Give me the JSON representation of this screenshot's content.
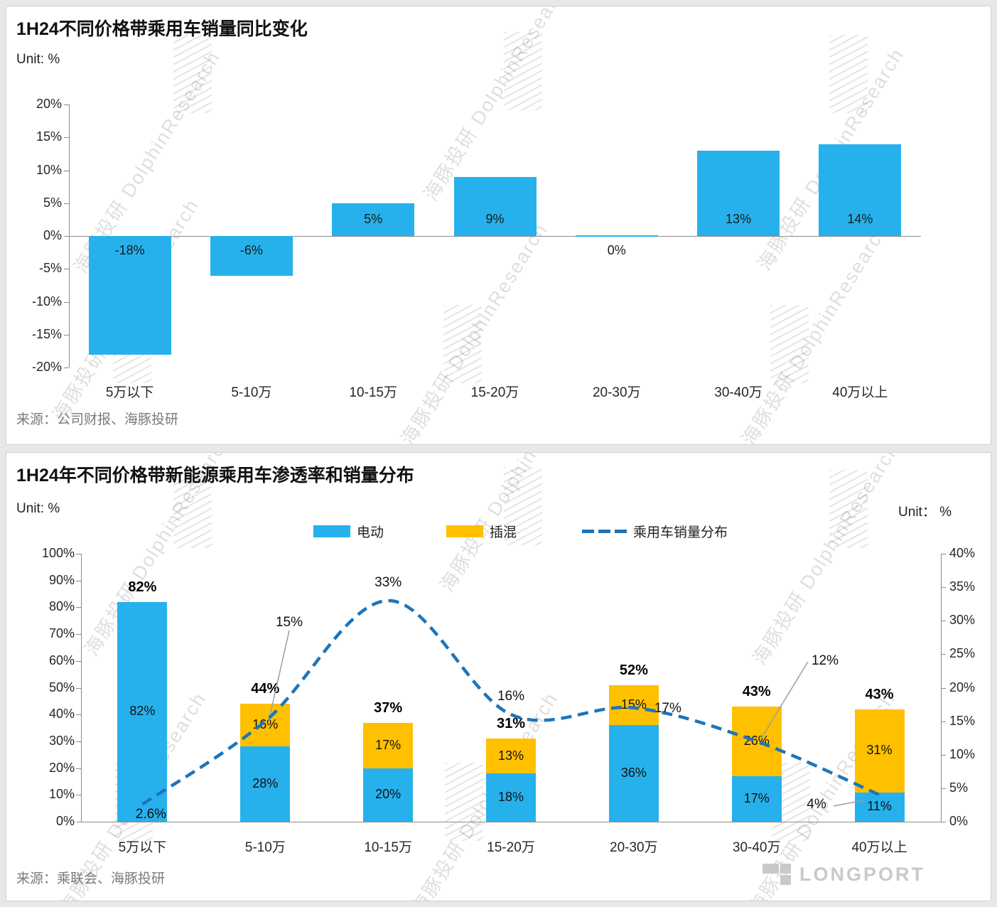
{
  "watermark": "海豚投研 DolphinResearch",
  "colors": {
    "bar_blue": "#27B1EC",
    "bar_yellow": "#FFC000",
    "line_blue": "#1C75BC"
  },
  "panels": [
    {
      "title": "1H24不同价格带乘用车销量同比变化",
      "unit_left": "Unit: %",
      "source": "来源：公司财报、海豚投研"
    },
    {
      "title": "1H24年不同价格带新能源乘用车渗透率和销量分布",
      "unit_left": "Unit: %",
      "unit_right": "Unit： %",
      "source": "来源：乘联会、海豚投研",
      "legend": [
        {
          "label": "电动",
          "color": "#27B1EC"
        },
        {
          "label": "插混",
          "color": "#FFC000"
        },
        {
          "label": "乘用车销量分布",
          "color": "#1C75BC"
        }
      ],
      "logo_text": "LONGPORT"
    }
  ],
  "chart_data": [
    {
      "type": "bar",
      "title": "1H24不同价格带乘用车销量同比变化",
      "unit": "%",
      "categories": [
        "5万以下",
        "5-10万",
        "10-15万",
        "15-20万",
        "20-30万",
        "30-40万",
        "40万以上"
      ],
      "values": [
        -18,
        -6,
        5,
        9,
        0,
        13,
        14
      ],
      "labels": [
        "-18%",
        "-6%",
        "5%",
        "9%",
        "0%",
        "13%",
        "14%"
      ],
      "ylim": [
        -20,
        20
      ],
      "yticks": [
        "20%",
        "15%",
        "10%",
        "5%",
        "0%",
        "-5%",
        "-10%",
        "-15%",
        "-20%"
      ],
      "bar_color": "#27B1EC",
      "grid": false,
      "legend_position": "none"
    },
    {
      "type": "bar",
      "subtype": "stacked-with-line",
      "title": "1H24年不同价格带新能源乘用车渗透率和销量分布",
      "categories": [
        "5万以下",
        "5-10万",
        "10-15万",
        "15-20万",
        "20-30万",
        "30-40万",
        "40万以上"
      ],
      "series": [
        {
          "name": "电动",
          "type": "bar",
          "axis": "left",
          "color": "#27B1EC",
          "values": [
            82,
            28,
            20,
            18,
            36,
            17,
            11
          ],
          "labels": [
            "82%",
            "28%",
            "20%",
            "18%",
            "36%",
            "17%",
            "11%"
          ]
        },
        {
          "name": "插混",
          "type": "bar",
          "axis": "left",
          "color": "#FFC000",
          "values": [
            0,
            16,
            17,
            13,
            15,
            26,
            31
          ],
          "labels": [
            "",
            "16%",
            "17%",
            "13%",
            "15%",
            "26%",
            "31%"
          ]
        },
        {
          "name": "乘用车销量分布",
          "type": "line",
          "style": "dashed",
          "axis": "right",
          "color": "#1C75BC",
          "values": [
            2.6,
            15,
            33,
            16,
            17,
            12,
            4
          ],
          "labels": [
            "2.6%",
            "15%",
            "33%",
            "16%",
            "17%",
            "12%",
            "4%"
          ]
        }
      ],
      "totals": [
        "82%",
        "44%",
        "37%",
        "31%",
        "52%",
        "43%",
        "43%"
      ],
      "ylim_left": [
        0,
        100
      ],
      "ylim_right": [
        0,
        40
      ],
      "left_ticks": [
        "100%",
        "90%",
        "80%",
        "70%",
        "60%",
        "50%",
        "40%",
        "30%",
        "20%",
        "10%",
        "0%"
      ],
      "right_ticks": [
        "40%",
        "35%",
        "30%",
        "25%",
        "20%",
        "15%",
        "10%",
        "5%",
        "0%"
      ],
      "legend_position": "top"
    }
  ]
}
